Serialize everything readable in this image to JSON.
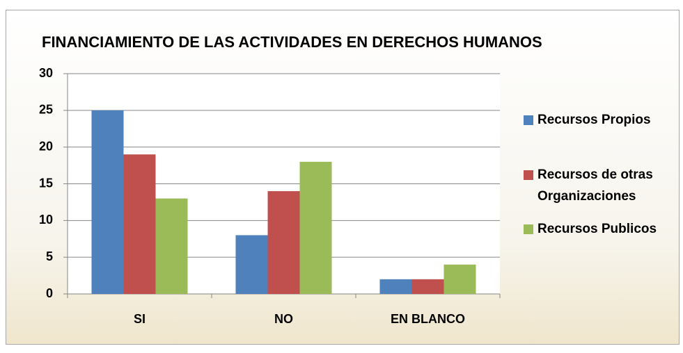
{
  "chart_data": {
    "type": "bar",
    "title": "FINANCIAMIENTO DE LAS ACTIVIDADES EN DERECHOS HUMANOS",
    "categories": [
      "SI",
      "NO",
      "EN BLANCO"
    ],
    "series": [
      {
        "name": "Recursos Propios",
        "color": "#4f81bd",
        "values": [
          25,
          8,
          2
        ]
      },
      {
        "name": "Recursos de otras Organizaciones",
        "color": "#c0504d",
        "values": [
          19,
          14,
          2
        ]
      },
      {
        "name": "Recursos Publicos",
        "color": "#9bbb59",
        "values": [
          13,
          18,
          4
        ]
      }
    ],
    "ylim": [
      0,
      30
    ],
    "yticks": [
      0,
      5,
      10,
      15,
      20,
      25,
      30
    ],
    "grid": true,
    "legend": "right"
  }
}
